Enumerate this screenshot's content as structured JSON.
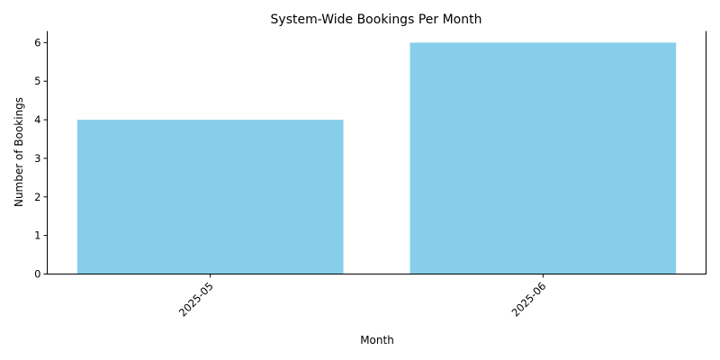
{
  "chart_data": {
    "type": "bar",
    "title": "System-Wide Bookings Per Month",
    "xlabel": "Month",
    "ylabel": "Number of Bookings",
    "categories": [
      "2025-05",
      "2025-06"
    ],
    "values": [
      4,
      6
    ],
    "ylim": [
      0,
      6.3
    ],
    "yticks": [
      0,
      1,
      2,
      3,
      4,
      5,
      6
    ],
    "xtick_rotation": 45,
    "bar_color": "#87CEEB",
    "grid": false,
    "legend": "none"
  }
}
